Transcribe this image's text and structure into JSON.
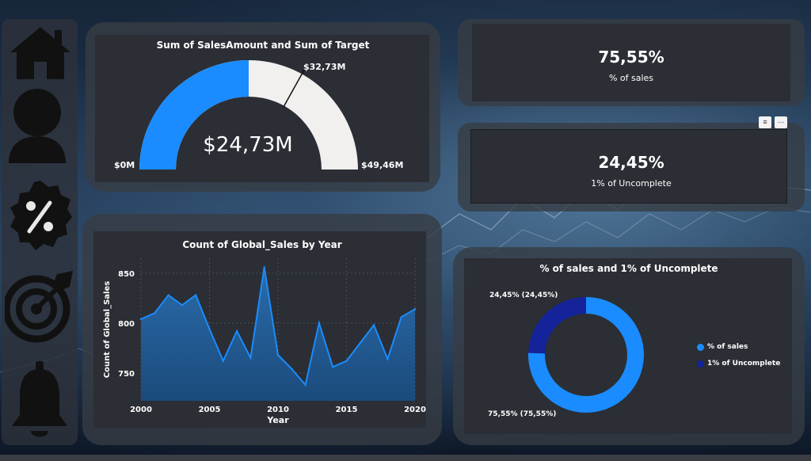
{
  "sidebar": {
    "items": [
      {
        "icon": "home-icon"
      },
      {
        "icon": "user-icon"
      },
      {
        "icon": "percent-badge-icon"
      },
      {
        "icon": "target-icon"
      },
      {
        "icon": "bell-icon"
      }
    ]
  },
  "gauge": {
    "title": "Sum of SalesAmount and Sum of Target",
    "value_label": "$24,73M",
    "min_label": "$0M",
    "max_label": "$49,46M",
    "target_label": "$32,73M"
  },
  "kpi_sales": {
    "value": "75,55%",
    "label": "% of sales"
  },
  "kpi_uncomplete": {
    "value": "24,45%",
    "label": "1% of Uncomplete"
  },
  "donut": {
    "title": "% of sales and 1% of Uncomplete",
    "label_uncomplete": "24,45% (24,45%)",
    "label_sales": "75,55% (75,55%)",
    "legend": [
      "% of sales",
      "1% of Uncomplete"
    ]
  },
  "line_chart": {
    "title": "Count of Global_Sales by Year"
  },
  "colors": {
    "accent": "#1a8cff",
    "dark_series": "#14239a",
    "area_fill": "#1f5f99",
    "gauge_bg": "#f1f0ee"
  },
  "chart_data": [
    {
      "type": "gauge",
      "title": "Sum of SalesAmount and Sum of Target",
      "value": 24.73,
      "min": 0,
      "max": 49.46,
      "target": 32.73,
      "unit": "$M"
    },
    {
      "type": "area",
      "title": "Count of Global_Sales by Year",
      "xlabel": "Year",
      "ylabel": "Count of Global_Sales",
      "x": [
        2000,
        2001,
        2002,
        2003,
        2004,
        2005,
        2006,
        2007,
        2008,
        2009,
        2010,
        2011,
        2012,
        2013,
        2014,
        2015,
        2016,
        2017,
        2018,
        2019,
        2020
      ],
      "values": [
        804,
        810,
        828,
        818,
        828,
        794,
        762,
        792,
        765,
        856,
        768,
        754,
        738,
        800,
        756,
        762,
        780,
        798,
        764,
        806,
        814
      ],
      "xticks": [
        "2000",
        "2005",
        "2010",
        "2015",
        "2020"
      ],
      "yticks": [
        "750",
        "800",
        "850"
      ],
      "xlim": [
        2000,
        2020
      ],
      "ylim": [
        722,
        865
      ]
    },
    {
      "type": "pie",
      "title": "% of sales and 1% of Uncomplete",
      "categories": [
        "% of sales",
        "1% of Uncomplete"
      ],
      "values": [
        75.55,
        24.45
      ],
      "legend": "right"
    }
  ]
}
